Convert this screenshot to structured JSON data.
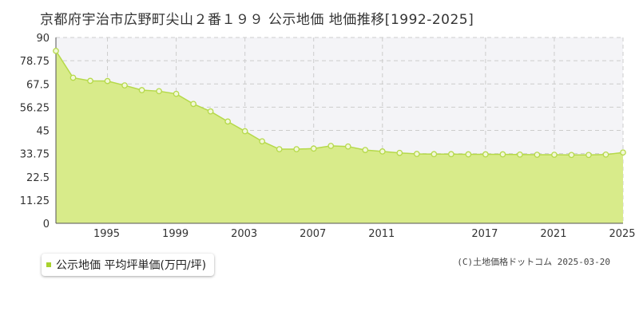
{
  "title": "京都府宇治市広野町尖山２番１９９ 公示地価 地価推移[1992-2025]",
  "legend": {
    "label": "公示地価 平均坪単価(万円/坪)",
    "color": "#a8d22e"
  },
  "copyright": "(C)土地価格ドットコム 2025-03-20",
  "colors": {
    "fill": "#d8eb8a",
    "line": "#b5d94a",
    "marker_fill": "#f2f8d6",
    "grid": "#cccccc",
    "band": "#f4f4f7"
  },
  "chart_data": {
    "type": "area",
    "title": "京都府宇治市広野町尖山２番１９９ 公示地価 地価推移[1992-2025]",
    "xlabel": "",
    "ylabel": "",
    "xlim": [
      1992,
      2025
    ],
    "ylim": [
      0,
      90
    ],
    "y_ticks": [
      "0",
      "11.25",
      "22.5",
      "33.75",
      "45",
      "56.25",
      "67.5",
      "78.75",
      "90"
    ],
    "x_ticks": [
      "1995",
      "1999",
      "2003",
      "2007",
      "2011",
      "2017",
      "2021",
      "2025"
    ],
    "grid": true,
    "series": [
      {
        "name": "公示地価 平均坪単価(万円/坪)",
        "x": [
          1992,
          1993,
          1994,
          1995,
          1996,
          1997,
          1998,
          1999,
          2000,
          2001,
          2002,
          2003,
          2004,
          2005,
          2006,
          2007,
          2008,
          2009,
          2010,
          2011,
          2012,
          2013,
          2014,
          2015,
          2016,
          2017,
          2018,
          2019,
          2020,
          2021,
          2022,
          2023,
          2024,
          2025
        ],
        "values": [
          83.5,
          70.5,
          69.0,
          68.9,
          66.8,
          64.5,
          64.0,
          62.7,
          57.8,
          54.2,
          49.3,
          44.6,
          39.7,
          35.9,
          35.9,
          36.2,
          37.5,
          37.2,
          35.5,
          34.8,
          34.1,
          33.6,
          33.5,
          33.5,
          33.4,
          33.4,
          33.4,
          33.3,
          33.2,
          33.2,
          33.1,
          33.1,
          33.3,
          34.3
        ]
      }
    ]
  }
}
